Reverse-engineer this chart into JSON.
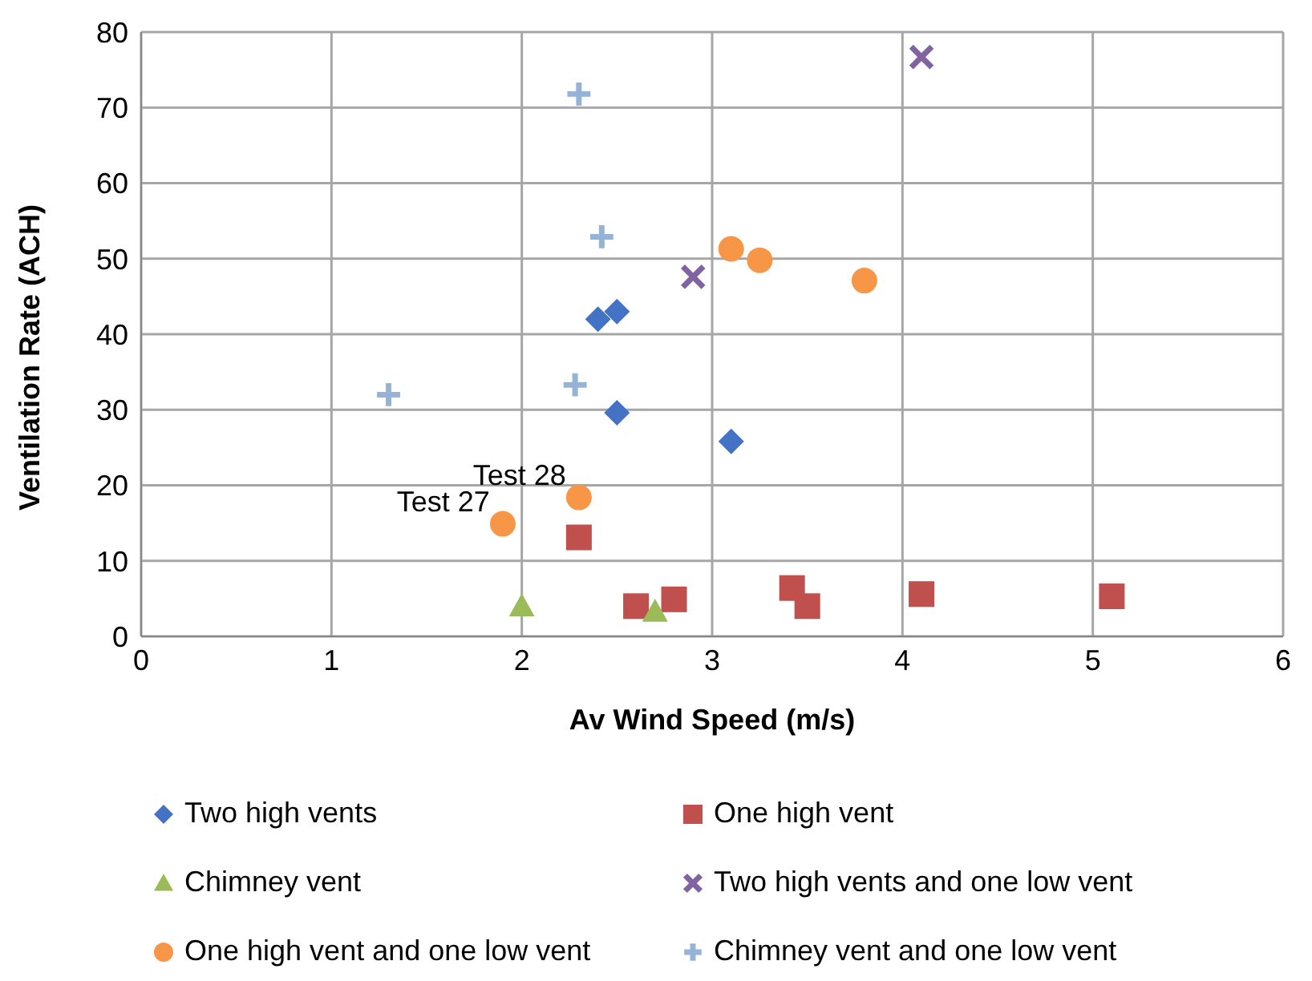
{
  "chart_data": {
    "type": "scatter",
    "xlabel": "Av Wind Speed (m/s)",
    "ylabel": "Ventilation Rate (ACH)",
    "xlim": [
      0,
      6
    ],
    "xticks": [
      0,
      1,
      2,
      3,
      4,
      5,
      6
    ],
    "ylim": [
      0,
      80
    ],
    "yticks": [
      0,
      10,
      20,
      30,
      40,
      50,
      60,
      70,
      80
    ],
    "grid": true,
    "legend": "bottom",
    "series": [
      {
        "name": "Two high vents",
        "color": "#4472c4",
        "marker": "diamond",
        "x": [
          2.4,
          2.5,
          2.5,
          3.1
        ],
        "values": [
          42,
          43,
          29.6,
          25.8
        ]
      },
      {
        "name": "One high vent",
        "color": "#c0504d",
        "marker": "square",
        "x": [
          2.3,
          2.6,
          2.8,
          3.42,
          3.5,
          4.1,
          5.1
        ],
        "values": [
          13.1,
          4.0,
          4.9,
          6.4,
          4.0,
          5.6,
          5.3
        ]
      },
      {
        "name": "Chimney vent",
        "color": "#9bbb59",
        "marker": "triangle",
        "x": [
          2.0,
          2.7
        ],
        "values": [
          4.0,
          3.3
        ]
      },
      {
        "name": "Two high vents and one low vent",
        "color": "#8064a2",
        "marker": "x",
        "x": [
          2.9,
          4.1
        ],
        "values": [
          47.6,
          76.7
        ]
      },
      {
        "name": "One high vent and one low vent",
        "color": "#f79646",
        "marker": "circle",
        "x": [
          1.9,
          2.3,
          3.1,
          3.25,
          3.8
        ],
        "values": [
          14.9,
          18.4,
          51.3,
          49.8,
          47.1
        ]
      },
      {
        "name": "Chimney vent and one low vent",
        "color": "#95b3d7",
        "marker": "cross",
        "x": [
          1.3,
          2.28,
          2.42,
          2.3
        ],
        "values": [
          32,
          33.3,
          52.9,
          71.8
        ]
      }
    ],
    "annotations": [
      {
        "text": "Test 28",
        "x": 2.3,
        "y": 18.4
      },
      {
        "text": "Test 27",
        "x": 1.9,
        "y": 14.9
      }
    ]
  }
}
